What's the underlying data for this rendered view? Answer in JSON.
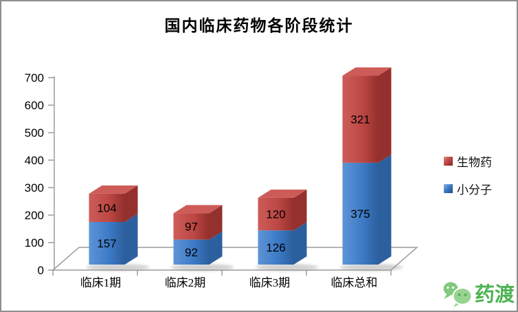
{
  "window": {
    "border_color": "#8e8e8e",
    "background": "#ffffff"
  },
  "chart_data": {
    "type": "bar",
    "subtype": "3d-stacked-column",
    "title": "国内临床药物各阶段统计",
    "categories": [
      "临床1期",
      "临床2期",
      "临床3期",
      "临床总和"
    ],
    "series": [
      {
        "name": "小分子",
        "values": [
          157,
          92,
          126,
          375
        ],
        "color": "#3d7bc6",
        "color_light": "#5f94d6",
        "color_dark": "#2c5f9e"
      },
      {
        "name": "生物药",
        "values": [
          104,
          97,
          120,
          321
        ],
        "color": "#bd4845",
        "color_light": "#cd5c58",
        "color_dark": "#94302d"
      }
    ],
    "totals": [
      261,
      189,
      246,
      696
    ],
    "xlabel": "",
    "ylabel": "",
    "y_axis": {
      "min": 0,
      "max": 700,
      "step": 100,
      "ticks": [
        0,
        100,
        200,
        300,
        400,
        500,
        600,
        700
      ]
    },
    "grid": false,
    "data_labels": true,
    "legend_position": "right",
    "axis_color": "#9c9c9c",
    "label_color": "#000000"
  },
  "legend": {
    "items": [
      {
        "label": "生物药",
        "color": "#bd4845",
        "color_light": "#e0847f",
        "color_dark": "#7c2421"
      },
      {
        "label": "小分子",
        "color": "#3d7bc6",
        "color_light": "#85b2e2",
        "color_dark": "#1f4b85"
      }
    ]
  },
  "logo": {
    "text": "药渡",
    "text_color": "#4db353",
    "colors": {
      "bubble_small": "#83ca7e",
      "bubble_big": "#97d391",
      "eye_small": "#ffffff",
      "eye_big": "#57a95c",
      "outline": "#ffffff"
    }
  }
}
